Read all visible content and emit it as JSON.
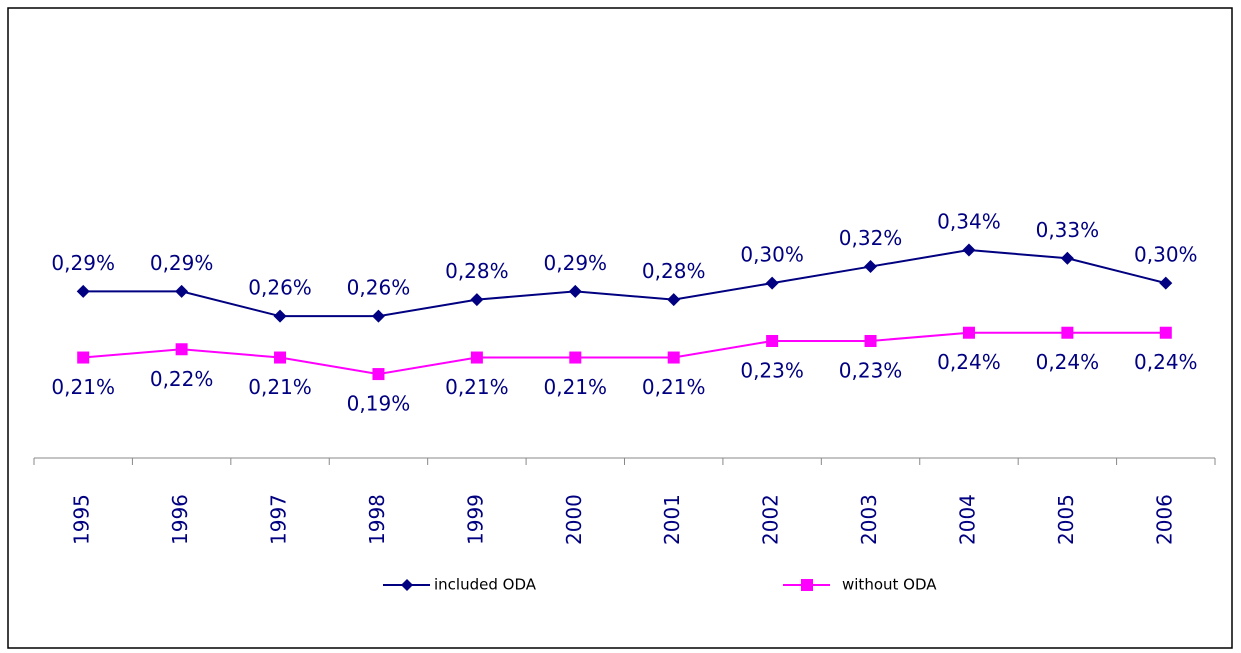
{
  "chart_data": {
    "type": "line",
    "categories": [
      "1995",
      "1996",
      "1997",
      "1998",
      "1999",
      "2000",
      "2001",
      "2002",
      "2003",
      "2004",
      "2005",
      "2006"
    ],
    "series": [
      {
        "name": "included ODA",
        "color": "#000080",
        "marker": "diamond",
        "values": [
          0.29,
          0.29,
          0.26,
          0.26,
          0.28,
          0.29,
          0.28,
          0.3,
          0.32,
          0.34,
          0.33,
          0.3
        ],
        "value_labels": [
          "0,29%",
          "0,29%",
          "0,26%",
          "0,26%",
          "0,28%",
          "0,29%",
          "0,28%",
          "0,30%",
          "0,32%",
          "0,34%",
          "0,33%",
          "0,30%"
        ]
      },
      {
        "name": "without ODA",
        "color": "#ff00ff",
        "marker": "square",
        "values": [
          0.21,
          0.22,
          0.21,
          0.19,
          0.21,
          0.21,
          0.21,
          0.23,
          0.23,
          0.24,
          0.24,
          0.24
        ],
        "value_labels": [
          "0,21%",
          "0,22%",
          "0,21%",
          "0,19%",
          "0,21%",
          "0,21%",
          "0,21%",
          "0,23%",
          "0,23%",
          "0,24%",
          "0,24%",
          "0,24%"
        ]
      }
    ],
    "ylim": [
      0.1,
      0.6
    ],
    "legend": "bottom"
  }
}
